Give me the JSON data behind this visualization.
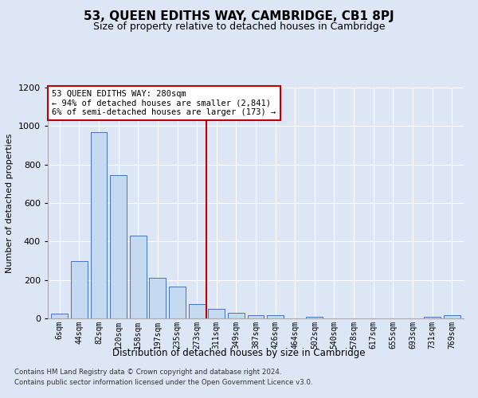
{
  "title": "53, QUEEN EDITHS WAY, CAMBRIDGE, CB1 8PJ",
  "subtitle": "Size of property relative to detached houses in Cambridge",
  "xlabel": "Distribution of detached houses by size in Cambridge",
  "ylabel": "Number of detached properties",
  "footnote1": "Contains HM Land Registry data © Crown copyright and database right 2024.",
  "footnote2": "Contains public sector information licensed under the Open Government Licence v3.0.",
  "annotation_line1": "53 QUEEN EDITHS WAY: 280sqm",
  "annotation_line2": "← 94% of detached houses are smaller (2,841)",
  "annotation_line3": "6% of semi-detached houses are larger (173) →",
  "bar_color": "#c5d9f1",
  "bar_edge_color": "#4472c4",
  "vline_color": "#c00000",
  "categories": [
    "6sqm",
    "44sqm",
    "82sqm",
    "120sqm",
    "158sqm",
    "197sqm",
    "235sqm",
    "273sqm",
    "311sqm",
    "349sqm",
    "387sqm",
    "426sqm",
    "464sqm",
    "502sqm",
    "540sqm",
    "578sqm",
    "617sqm",
    "655sqm",
    "693sqm",
    "731sqm",
    "769sqm"
  ],
  "bar_heights": [
    25,
    300,
    970,
    745,
    430,
    210,
    165,
    75,
    50,
    30,
    15,
    15,
    0,
    10,
    0,
    0,
    0,
    0,
    0,
    10,
    15
  ],
  "vline_pos": 7.5,
  "ylim": [
    0,
    1200
  ],
  "yticks": [
    0,
    200,
    400,
    600,
    800,
    1000,
    1200
  ],
  "bg_color": "#dce6f5",
  "grid_color": "#ffffff",
  "title_fontsize": 11,
  "subtitle_fontsize": 9
}
